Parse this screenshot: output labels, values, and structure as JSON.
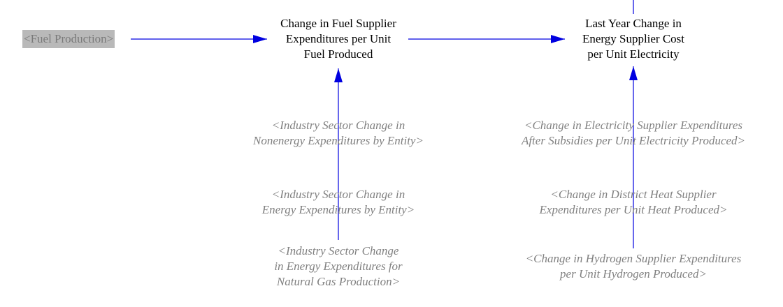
{
  "colors": {
    "arrow": "#0000e0",
    "variable_text": "#000000",
    "shadow_text": "#808080",
    "shadow_box_bg": "#b9b9b9"
  },
  "nodes": {
    "fuel_production": {
      "lines": [
        "<Fuel Production>"
      ]
    },
    "change_fuel_supplier": {
      "lines": [
        "Change in Fuel Supplier",
        "Expenditures per Unit",
        "Fuel Produced"
      ]
    },
    "last_year_change": {
      "lines": [
        "Last Year Change in",
        "Energy Supplier Cost",
        "per Unit Electricity"
      ]
    },
    "industry_nonenergy": {
      "lines": [
        "<Industry Sector Change in",
        "Nonenergy Expenditures by Entity>"
      ]
    },
    "industry_energy": {
      "lines": [
        "<Industry Sector Change in",
        "Energy Expenditures by Entity>"
      ]
    },
    "industry_natgas": {
      "lines": [
        "<Industry Sector Change",
        "in Energy Expenditures for",
        "Natural Gas Production>"
      ]
    },
    "electricity_supplier": {
      "lines": [
        "<Change in Electricity Supplier Expenditures",
        "After Subsidies per Unit Electricity Produced>"
      ]
    },
    "district_heat": {
      "lines": [
        "<Change in District Heat Supplier",
        "Expenditures per Unit Heat Produced>"
      ]
    },
    "hydrogen_supplier": {
      "lines": [
        "<Change in Hydrogen Supplier Expenditures",
        "per Unit Hydrogen Produced>"
      ]
    }
  }
}
